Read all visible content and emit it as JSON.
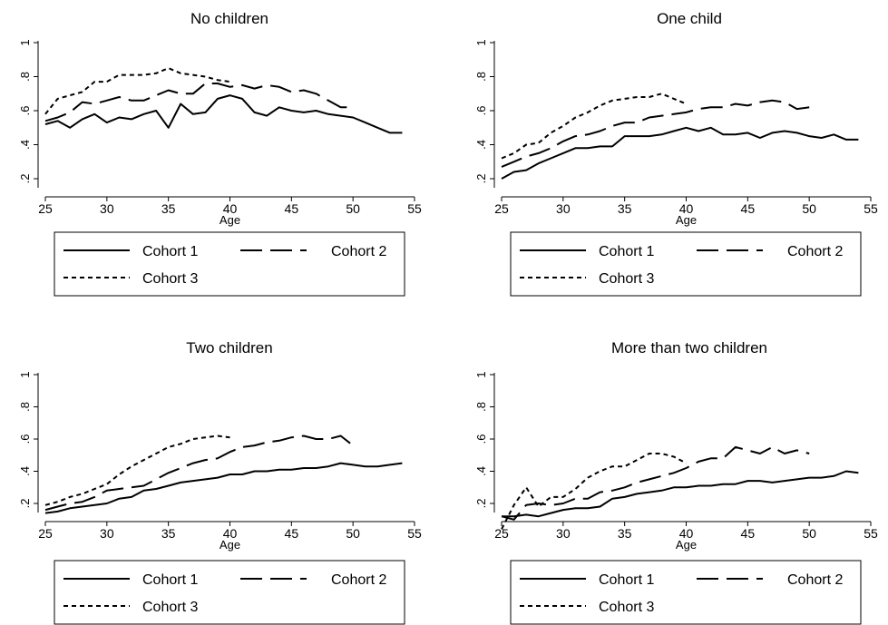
{
  "chart_data": [
    {
      "type": "line",
      "title": "No children",
      "xlabel": "Age",
      "xticks": [
        25,
        30,
        35,
        40,
        45,
        50,
        55
      ],
      "yticks": [
        0.2,
        0.4,
        0.6,
        0.8,
        1
      ],
      "yticklabels": [
        ".2",
        ".4",
        ".6",
        ".8",
        "1"
      ],
      "ylim": [
        0.2,
        1
      ],
      "xlim": [
        25,
        55
      ],
      "series": [
        {
          "name": "Cohort 1",
          "style": "solid",
          "x": [
            25,
            26,
            27,
            28,
            29,
            30,
            31,
            32,
            33,
            34,
            35,
            36,
            37,
            38,
            39,
            40,
            41,
            42,
            43,
            44,
            45,
            46,
            47,
            48,
            49,
            50,
            51,
            52,
            53,
            54
          ],
          "y": [
            0.52,
            0.54,
            0.5,
            0.55,
            0.58,
            0.53,
            0.56,
            0.55,
            0.58,
            0.6,
            0.5,
            0.64,
            0.58,
            0.59,
            0.67,
            0.69,
            0.67,
            0.59,
            0.57,
            0.62,
            0.6,
            0.59,
            0.6,
            0.58,
            0.57,
            0.56,
            0.53,
            0.5,
            0.47,
            0.47
          ]
        },
        {
          "name": "Cohort 2",
          "style": "longdash",
          "x": [
            25,
            26,
            27,
            28,
            29,
            30,
            31,
            32,
            33,
            34,
            35,
            36,
            37,
            38,
            39,
            40,
            41,
            42,
            43,
            44,
            45,
            46,
            47,
            48,
            49,
            50
          ],
          "y": [
            0.54,
            0.56,
            0.59,
            0.65,
            0.64,
            0.66,
            0.68,
            0.66,
            0.66,
            0.69,
            0.72,
            0.7,
            0.7,
            0.76,
            0.76,
            0.74,
            0.75,
            0.73,
            0.75,
            0.74,
            0.71,
            0.72,
            0.7,
            0.66,
            0.62,
            0.62
          ]
        },
        {
          "name": "Cohort 3",
          "style": "shortdash",
          "x": [
            25,
            26,
            27,
            28,
            29,
            30,
            31,
            32,
            33,
            34,
            35,
            36,
            37,
            38,
            39,
            40
          ],
          "y": [
            0.58,
            0.67,
            0.69,
            0.71,
            0.77,
            0.77,
            0.81,
            0.81,
            0.81,
            0.82,
            0.85,
            0.82,
            0.81,
            0.8,
            0.78,
            0.77
          ]
        }
      ]
    },
    {
      "type": "line",
      "title": "One child",
      "xlabel": "Age",
      "xticks": [
        25,
        30,
        35,
        40,
        45,
        50,
        55
      ],
      "yticks": [
        0.2,
        0.4,
        0.6,
        0.8,
        1
      ],
      "yticklabels": [
        ".2",
        ".4",
        ".6",
        ".8",
        "1"
      ],
      "ylim": [
        0.2,
        1
      ],
      "xlim": [
        25,
        55
      ],
      "series": [
        {
          "name": "Cohort 1",
          "style": "solid",
          "x": [
            25,
            26,
            27,
            28,
            29,
            30,
            31,
            32,
            33,
            34,
            35,
            36,
            37,
            38,
            39,
            40,
            41,
            42,
            43,
            44,
            45,
            46,
            47,
            48,
            49,
            50,
            51,
            52,
            53,
            54
          ],
          "y": [
            0.2,
            0.24,
            0.25,
            0.29,
            0.32,
            0.35,
            0.38,
            0.38,
            0.39,
            0.39,
            0.45,
            0.45,
            0.45,
            0.46,
            0.48,
            0.5,
            0.48,
            0.5,
            0.46,
            0.46,
            0.47,
            0.44,
            0.47,
            0.48,
            0.47,
            0.45,
            0.44,
            0.46,
            0.43,
            0.43
          ]
        },
        {
          "name": "Cohort 2",
          "style": "longdash",
          "x": [
            25,
            26,
            27,
            28,
            29,
            30,
            31,
            32,
            33,
            34,
            35,
            36,
            37,
            38,
            39,
            40,
            41,
            42,
            43,
            44,
            45,
            46,
            47,
            48,
            49,
            50
          ],
          "y": [
            0.27,
            0.3,
            0.33,
            0.35,
            0.38,
            0.42,
            0.45,
            0.46,
            0.48,
            0.51,
            0.53,
            0.53,
            0.56,
            0.57,
            0.58,
            0.59,
            0.61,
            0.62,
            0.62,
            0.64,
            0.63,
            0.65,
            0.66,
            0.65,
            0.61,
            0.62
          ]
        },
        {
          "name": "Cohort 3",
          "style": "shortdash",
          "x": [
            25,
            26,
            27,
            28,
            29,
            30,
            31,
            32,
            33,
            34,
            35,
            36,
            37,
            38,
            39,
            40
          ],
          "y": [
            0.32,
            0.35,
            0.4,
            0.41,
            0.47,
            0.51,
            0.56,
            0.59,
            0.63,
            0.66,
            0.67,
            0.68,
            0.68,
            0.7,
            0.67,
            0.64
          ]
        }
      ]
    },
    {
      "type": "line",
      "title": "Two children",
      "xlabel": "Age",
      "xticks": [
        25,
        30,
        35,
        40,
        45,
        50,
        55
      ],
      "yticks": [
        0.2,
        0.4,
        0.6,
        0.8,
        1
      ],
      "yticklabels": [
        ".2",
        ".4",
        ".6",
        ".8",
        "1"
      ],
      "ylim": [
        0.2,
        1
      ],
      "xlim": [
        25,
        55
      ],
      "series": [
        {
          "name": "Cohort 1",
          "style": "solid",
          "x": [
            25,
            26,
            27,
            28,
            29,
            30,
            31,
            32,
            33,
            34,
            35,
            36,
            37,
            38,
            39,
            40,
            41,
            42,
            43,
            44,
            45,
            46,
            47,
            48,
            49,
            50,
            51,
            52,
            53,
            54
          ],
          "y": [
            0.14,
            0.15,
            0.17,
            0.18,
            0.19,
            0.2,
            0.23,
            0.24,
            0.28,
            0.29,
            0.31,
            0.33,
            0.34,
            0.35,
            0.36,
            0.38,
            0.38,
            0.4,
            0.4,
            0.41,
            0.41,
            0.42,
            0.42,
            0.43,
            0.45,
            0.44,
            0.43,
            0.43,
            0.44,
            0.45
          ]
        },
        {
          "name": "Cohort 2",
          "style": "longdash",
          "x": [
            25,
            26,
            27,
            28,
            29,
            30,
            31,
            32,
            33,
            34,
            35,
            36,
            37,
            38,
            39,
            40,
            41,
            42,
            43,
            44,
            45,
            46,
            47,
            48,
            49,
            50
          ],
          "y": [
            0.16,
            0.18,
            0.2,
            0.21,
            0.24,
            0.28,
            0.29,
            0.3,
            0.31,
            0.35,
            0.39,
            0.42,
            0.45,
            0.47,
            0.48,
            0.52,
            0.55,
            0.56,
            0.58,
            0.59,
            0.61,
            0.62,
            0.6,
            0.6,
            0.62,
            0.56
          ]
        },
        {
          "name": "Cohort 3",
          "style": "shortdash",
          "x": [
            25,
            26,
            27,
            28,
            29,
            30,
            31,
            32,
            33,
            34,
            35,
            36,
            37,
            38,
            39,
            40
          ],
          "y": [
            0.19,
            0.21,
            0.24,
            0.26,
            0.29,
            0.32,
            0.38,
            0.43,
            0.47,
            0.51,
            0.55,
            0.57,
            0.6,
            0.61,
            0.62,
            0.61
          ]
        }
      ]
    },
    {
      "type": "line",
      "title": "More than two children",
      "xlabel": "Age",
      "xticks": [
        25,
        30,
        35,
        40,
        45,
        50,
        55
      ],
      "yticks": [
        0.2,
        0.4,
        0.6,
        0.8,
        1
      ],
      "yticklabels": [
        ".2",
        ".4",
        ".6",
        ".8",
        "1"
      ],
      "ylim": [
        0.2,
        1
      ],
      "xlim": [
        25,
        55
      ],
      "series": [
        {
          "name": "Cohort 1",
          "style": "solid",
          "x": [
            25,
            26,
            27,
            28,
            29,
            30,
            31,
            32,
            33,
            34,
            35,
            36,
            37,
            38,
            39,
            40,
            41,
            42,
            43,
            44,
            45,
            46,
            47,
            48,
            49,
            50,
            51,
            52,
            53,
            54
          ],
          "y": [
            0.12,
            0.12,
            0.13,
            0.12,
            0.14,
            0.16,
            0.17,
            0.17,
            0.18,
            0.23,
            0.24,
            0.26,
            0.27,
            0.28,
            0.3,
            0.3,
            0.31,
            0.31,
            0.32,
            0.32,
            0.34,
            0.34,
            0.33,
            0.34,
            0.35,
            0.36,
            0.36,
            0.37,
            0.4,
            0.39
          ]
        },
        {
          "name": "Cohort 2",
          "style": "longdash",
          "x": [
            25,
            26,
            27,
            28,
            29,
            30,
            31,
            32,
            33,
            34,
            35,
            36,
            37,
            38,
            39,
            40,
            41,
            42,
            43,
            44,
            45,
            46,
            47,
            48,
            49,
            50
          ],
          "y": [
            0.12,
            0.1,
            0.19,
            0.2,
            0.19,
            0.2,
            0.23,
            0.23,
            0.27,
            0.28,
            0.3,
            0.33,
            0.35,
            0.37,
            0.39,
            0.42,
            0.46,
            0.48,
            0.48,
            0.55,
            0.53,
            0.51,
            0.55,
            0.51,
            0.53,
            0.51
          ]
        },
        {
          "name": "Cohort 3",
          "style": "shortdash",
          "x": [
            25,
            26,
            27,
            28,
            29,
            30,
            31,
            32,
            33,
            34,
            35,
            36,
            37,
            38,
            39,
            40
          ],
          "y": [
            0.04,
            0.19,
            0.3,
            0.18,
            0.24,
            0.24,
            0.29,
            0.36,
            0.4,
            0.43,
            0.43,
            0.47,
            0.51,
            0.51,
            0.49,
            0.45
          ]
        }
      ]
    }
  ],
  "legend": {
    "entries": [
      {
        "label": "Cohort 1",
        "style": "solid"
      },
      {
        "label": "Cohort 2",
        "style": "longdash"
      },
      {
        "label": "Cohort 3",
        "style": "shortdash"
      }
    ]
  },
  "colors": {
    "line": "#000000",
    "background": "#ffffff"
  }
}
